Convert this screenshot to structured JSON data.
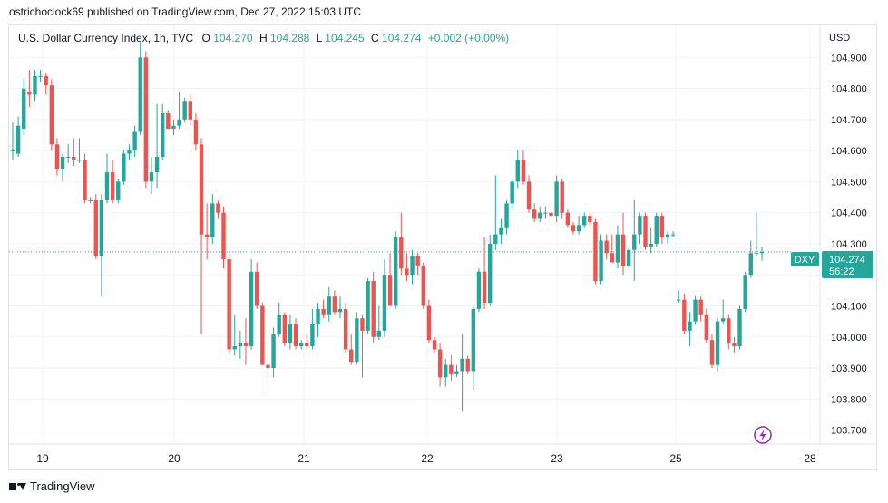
{
  "header": {
    "caption": "ostrichoclock69 published on TradingView.com, Dec 27, 2022 15:03 UTC"
  },
  "legend": {
    "symbol": "U.S. Dollar Currency Index, 1h, TVC",
    "o_label": "O",
    "o_value": "104.270",
    "h_label": "H",
    "h_value": "104.288",
    "l_label": "L",
    "l_value": "104.245",
    "c_label": "C",
    "c_value": "104.274",
    "change": "+0.002 (+0.00%)"
  },
  "price_axis": {
    "currency": "USD",
    "ticks": [
      "104.900",
      "104.800",
      "104.700",
      "104.600",
      "104.500",
      "104.400",
      "104.300",
      "104.200",
      "104.100",
      "104.000",
      "103.900",
      "103.800",
      "103.700"
    ]
  },
  "time_axis": {
    "labels": [
      "19",
      "20",
      "21",
      "22",
      "23",
      "25",
      "28"
    ]
  },
  "price_marker": {
    "ticker": "DXY",
    "price": "104.274",
    "countdown": "56:22"
  },
  "footer": {
    "brand": "TradingView"
  },
  "colors": {
    "up": "#26a69a",
    "down": "#ef5350",
    "grid": "#f0f3fa",
    "axis_text": "#131722",
    "marker_bg": "#26a69a",
    "lightning": "#9c27b0"
  },
  "icons": [
    "lightning-icon",
    "tradingview-logo-icon"
  ],
  "chart_data": {
    "type": "candlestick",
    "title": "U.S. Dollar Currency Index, 1h, TVC",
    "ylabel": "USD",
    "ylim": [
      103.655,
      105.003
    ],
    "x_labels": [
      "19",
      "20",
      "21",
      "22",
      "23",
      "25",
      "28"
    ],
    "last_price": 104.274,
    "grid": true,
    "candles": [
      {
        "o": 104.6,
        "h": 104.69,
        "l": 104.57,
        "c": 104.6
      },
      {
        "o": 104.59,
        "h": 104.71,
        "l": 104.58,
        "c": 104.68
      },
      {
        "o": 104.67,
        "h": 104.83,
        "l": 104.65,
        "c": 104.8
      },
      {
        "o": 104.79,
        "h": 104.86,
        "l": 104.74,
        "c": 104.78
      },
      {
        "o": 104.78,
        "h": 104.86,
        "l": 104.76,
        "c": 104.84
      },
      {
        "o": 104.84,
        "h": 104.86,
        "l": 104.82,
        "c": 104.84
      },
      {
        "o": 104.84,
        "h": 104.85,
        "l": 104.78,
        "c": 104.81
      },
      {
        "o": 104.81,
        "h": 104.83,
        "l": 104.6,
        "c": 104.62
      },
      {
        "o": 104.62,
        "h": 104.64,
        "l": 104.52,
        "c": 104.54
      },
      {
        "o": 104.54,
        "h": 104.59,
        "l": 104.5,
        "c": 104.58
      },
      {
        "o": 104.58,
        "h": 104.62,
        "l": 104.56,
        "c": 104.58
      },
      {
        "o": 104.58,
        "h": 104.64,
        "l": 104.55,
        "c": 104.57
      },
      {
        "o": 104.57,
        "h": 104.64,
        "l": 104.56,
        "c": 104.57
      },
      {
        "o": 104.57,
        "h": 104.59,
        "l": 104.43,
        "c": 104.44
      },
      {
        "o": 104.44,
        "h": 104.45,
        "l": 104.43,
        "c": 104.44
      },
      {
        "o": 104.44,
        "h": 104.46,
        "l": 104.25,
        "c": 104.26
      },
      {
        "o": 104.26,
        "h": 104.46,
        "l": 104.13,
        "c": 104.44
      },
      {
        "o": 104.44,
        "h": 104.59,
        "l": 104.43,
        "c": 104.53
      },
      {
        "o": 104.53,
        "h": 104.57,
        "l": 104.43,
        "c": 104.44
      },
      {
        "o": 104.44,
        "h": 104.51,
        "l": 104.43,
        "c": 104.5
      },
      {
        "o": 104.5,
        "h": 104.6,
        "l": 104.49,
        "c": 104.59
      },
      {
        "o": 104.59,
        "h": 104.62,
        "l": 104.57,
        "c": 104.6
      },
      {
        "o": 104.6,
        "h": 104.68,
        "l": 104.58,
        "c": 104.66
      },
      {
        "o": 104.66,
        "h": 104.95,
        "l": 104.65,
        "c": 104.9
      },
      {
        "o": 104.9,
        "h": 104.92,
        "l": 104.48,
        "c": 104.5
      },
      {
        "o": 104.5,
        "h": 104.58,
        "l": 104.46,
        "c": 104.53
      },
      {
        "o": 104.53,
        "h": 104.75,
        "l": 104.48,
        "c": 104.58
      },
      {
        "o": 104.58,
        "h": 104.75,
        "l": 104.57,
        "c": 104.72
      },
      {
        "o": 104.72,
        "h": 104.73,
        "l": 104.67,
        "c": 104.67
      },
      {
        "o": 104.67,
        "h": 104.7,
        "l": 104.65,
        "c": 104.68
      },
      {
        "o": 104.68,
        "h": 104.79,
        "l": 104.67,
        "c": 104.7
      },
      {
        "o": 104.7,
        "h": 104.77,
        "l": 104.69,
        "c": 104.76
      },
      {
        "o": 104.76,
        "h": 104.78,
        "l": 104.68,
        "c": 104.7
      },
      {
        "o": 104.7,
        "h": 104.72,
        "l": 104.6,
        "c": 104.62
      },
      {
        "o": 104.62,
        "h": 104.64,
        "l": 104.01,
        "c": 104.33
      },
      {
        "o": 104.33,
        "h": 104.43,
        "l": 104.25,
        "c": 104.32
      },
      {
        "o": 104.32,
        "h": 104.46,
        "l": 104.3,
        "c": 104.43
      },
      {
        "o": 104.43,
        "h": 104.44,
        "l": 104.38,
        "c": 104.4
      },
      {
        "o": 104.4,
        "h": 104.42,
        "l": 104.22,
        "c": 104.25
      },
      {
        "o": 104.25,
        "h": 104.27,
        "l": 103.95,
        "c": 103.96
      },
      {
        "o": 103.96,
        "h": 104.07,
        "l": 103.94,
        "c": 103.97
      },
      {
        "o": 103.97,
        "h": 104.02,
        "l": 103.93,
        "c": 103.98
      },
      {
        "o": 103.98,
        "h": 104.06,
        "l": 103.91,
        "c": 103.97
      },
      {
        "o": 103.97,
        "h": 104.25,
        "l": 103.96,
        "c": 104.21
      },
      {
        "o": 104.21,
        "h": 104.24,
        "l": 104.09,
        "c": 104.1
      },
      {
        "o": 104.1,
        "h": 104.11,
        "l": 103.91,
        "c": 103.91
      },
      {
        "o": 103.91,
        "h": 103.94,
        "l": 103.82,
        "c": 103.9
      },
      {
        "o": 103.9,
        "h": 104.03,
        "l": 103.87,
        "c": 104.01
      },
      {
        "o": 104.01,
        "h": 104.11,
        "l": 104.0,
        "c": 104.07
      },
      {
        "o": 104.07,
        "h": 104.08,
        "l": 103.97,
        "c": 103.98
      },
      {
        "o": 103.98,
        "h": 104.07,
        "l": 103.96,
        "c": 104.04
      },
      {
        "o": 104.04,
        "h": 104.06,
        "l": 103.96,
        "c": 103.97
      },
      {
        "o": 103.97,
        "h": 103.99,
        "l": 103.96,
        "c": 103.98
      },
      {
        "o": 103.98,
        "h": 104.01,
        "l": 103.96,
        "c": 103.97
      },
      {
        "o": 103.97,
        "h": 104.09,
        "l": 103.96,
        "c": 104.04
      },
      {
        "o": 104.04,
        "h": 104.11,
        "l": 104.0,
        "c": 104.09
      },
      {
        "o": 104.09,
        "h": 104.12,
        "l": 104.06,
        "c": 104.07
      },
      {
        "o": 104.07,
        "h": 104.16,
        "l": 104.05,
        "c": 104.13
      },
      {
        "o": 104.13,
        "h": 104.15,
        "l": 104.07,
        "c": 104.08
      },
      {
        "o": 104.08,
        "h": 104.13,
        "l": 104.06,
        "c": 104.09
      },
      {
        "o": 104.09,
        "h": 104.11,
        "l": 103.95,
        "c": 103.96
      },
      {
        "o": 103.96,
        "h": 104.01,
        "l": 103.91,
        "c": 103.92
      },
      {
        "o": 103.92,
        "h": 104.08,
        "l": 103.91,
        "c": 104.06
      },
      {
        "o": 104.06,
        "h": 104.07,
        "l": 103.87,
        "c": 104.02
      },
      {
        "o": 104.02,
        "h": 104.19,
        "l": 104.01,
        "c": 104.18
      },
      {
        "o": 104.18,
        "h": 104.21,
        "l": 103.98,
        "c": 104.0
      },
      {
        "o": 104.0,
        "h": 104.1,
        "l": 103.99,
        "c": 104.02
      },
      {
        "o": 104.02,
        "h": 104.25,
        "l": 104.0,
        "c": 104.2
      },
      {
        "o": 104.2,
        "h": 104.27,
        "l": 104.1,
        "c": 104.1
      },
      {
        "o": 104.1,
        "h": 104.34,
        "l": 104.09,
        "c": 104.32
      },
      {
        "o": 104.32,
        "h": 104.4,
        "l": 104.2,
        "c": 104.22
      },
      {
        "o": 104.22,
        "h": 104.27,
        "l": 104.18,
        "c": 104.2
      },
      {
        "o": 104.2,
        "h": 104.28,
        "l": 104.17,
        "c": 104.26
      },
      {
        "o": 104.26,
        "h": 104.27,
        "l": 104.2,
        "c": 104.23
      },
      {
        "o": 104.23,
        "h": 104.24,
        "l": 104.09,
        "c": 104.1
      },
      {
        "o": 104.1,
        "h": 104.12,
        "l": 103.98,
        "c": 103.99
      },
      {
        "o": 103.99,
        "h": 104.0,
        "l": 103.95,
        "c": 103.96
      },
      {
        "o": 103.96,
        "h": 103.98,
        "l": 103.84,
        "c": 103.87
      },
      {
        "o": 103.87,
        "h": 103.93,
        "l": 103.84,
        "c": 103.91
      },
      {
        "o": 103.91,
        "h": 103.94,
        "l": 103.86,
        "c": 103.88
      },
      {
        "o": 103.88,
        "h": 103.91,
        "l": 103.87,
        "c": 103.89
      },
      {
        "o": 103.89,
        "h": 104.01,
        "l": 103.76,
        "c": 103.93
      },
      {
        "o": 103.93,
        "h": 103.94,
        "l": 103.88,
        "c": 103.89
      },
      {
        "o": 103.89,
        "h": 104.1,
        "l": 103.83,
        "c": 104.09
      },
      {
        "o": 104.09,
        "h": 104.22,
        "l": 104.08,
        "c": 104.21
      },
      {
        "o": 104.21,
        "h": 104.32,
        "l": 104.09,
        "c": 104.11
      },
      {
        "o": 104.11,
        "h": 104.33,
        "l": 104.1,
        "c": 104.3
      },
      {
        "o": 104.3,
        "h": 104.52,
        "l": 104.28,
        "c": 104.33
      },
      {
        "o": 104.33,
        "h": 104.38,
        "l": 104.3,
        "c": 104.35
      },
      {
        "o": 104.35,
        "h": 104.44,
        "l": 104.33,
        "c": 104.43
      },
      {
        "o": 104.43,
        "h": 104.51,
        "l": 104.41,
        "c": 104.5
      },
      {
        "o": 104.5,
        "h": 104.6,
        "l": 104.48,
        "c": 104.57
      },
      {
        "o": 104.57,
        "h": 104.6,
        "l": 104.49,
        "c": 104.5
      },
      {
        "o": 104.5,
        "h": 104.52,
        "l": 104.4,
        "c": 104.41
      },
      {
        "o": 104.41,
        "h": 104.43,
        "l": 104.37,
        "c": 104.38
      },
      {
        "o": 104.38,
        "h": 104.42,
        "l": 104.37,
        "c": 104.4
      },
      {
        "o": 104.4,
        "h": 104.42,
        "l": 104.38,
        "c": 104.4
      },
      {
        "o": 104.4,
        "h": 104.42,
        "l": 104.38,
        "c": 104.39
      },
      {
        "o": 104.39,
        "h": 104.52,
        "l": 104.37,
        "c": 104.5
      },
      {
        "o": 104.5,
        "h": 104.51,
        "l": 104.38,
        "c": 104.4
      },
      {
        "o": 104.4,
        "h": 104.41,
        "l": 104.35,
        "c": 104.36
      },
      {
        "o": 104.36,
        "h": 104.37,
        "l": 104.33,
        "c": 104.34
      },
      {
        "o": 104.34,
        "h": 104.39,
        "l": 104.33,
        "c": 104.36
      },
      {
        "o": 104.36,
        "h": 104.4,
        "l": 104.35,
        "c": 104.39
      },
      {
        "o": 104.39,
        "h": 104.4,
        "l": 104.36,
        "c": 104.37
      },
      {
        "o": 104.37,
        "h": 104.38,
        "l": 104.17,
        "c": 104.18
      },
      {
        "o": 104.18,
        "h": 104.33,
        "l": 104.17,
        "c": 104.31
      },
      {
        "o": 104.31,
        "h": 104.33,
        "l": 104.25,
        "c": 104.27
      },
      {
        "o": 104.27,
        "h": 104.33,
        "l": 104.24,
        "c": 104.24
      },
      {
        "o": 104.24,
        "h": 104.36,
        "l": 104.22,
        "c": 104.33
      },
      {
        "o": 104.33,
        "h": 104.4,
        "l": 104.2,
        "c": 104.23
      },
      {
        "o": 104.23,
        "h": 104.29,
        "l": 104.22,
        "c": 104.28
      },
      {
        "o": 104.28,
        "h": 104.44,
        "l": 104.18,
        "c": 104.33
      },
      {
        "o": 104.33,
        "h": 104.4,
        "l": 104.3,
        "c": 104.39
      },
      {
        "o": 104.39,
        "h": 104.4,
        "l": 104.28,
        "c": 104.29
      },
      {
        "o": 104.29,
        "h": 104.35,
        "l": 104.27,
        "c": 104.3
      },
      {
        "o": 104.3,
        "h": 104.4,
        "l": 104.29,
        "c": 104.39
      },
      {
        "o": 104.39,
        "h": 104.4,
        "l": 104.3,
        "c": 104.32
      },
      {
        "o": 104.32,
        "h": 104.34,
        "l": 104.3,
        "c": 104.33
      },
      {
        "o": 104.33,
        "h": 104.34,
        "l": 104.32,
        "c": 104.33
      },
      {
        "o": 104.12,
        "h": 104.15,
        "l": 104.11,
        "c": 104.12
      },
      {
        "o": 104.12,
        "h": 104.14,
        "l": 104.01,
        "c": 104.02
      },
      {
        "o": 104.02,
        "h": 104.08,
        "l": 103.97,
        "c": 104.05
      },
      {
        "o": 104.05,
        "h": 104.13,
        "l": 104.04,
        "c": 104.12
      },
      {
        "o": 104.12,
        "h": 104.13,
        "l": 104.05,
        "c": 104.07
      },
      {
        "o": 104.07,
        "h": 104.09,
        "l": 103.98,
        "c": 103.99
      },
      {
        "o": 103.99,
        "h": 104.01,
        "l": 103.9,
        "c": 103.91
      },
      {
        "o": 103.91,
        "h": 104.06,
        "l": 103.89,
        "c": 104.05
      },
      {
        "o": 104.05,
        "h": 104.12,
        "l": 104.04,
        "c": 104.06
      },
      {
        "o": 104.06,
        "h": 104.07,
        "l": 103.96,
        "c": 103.98
      },
      {
        "o": 103.98,
        "h": 104.0,
        "l": 103.95,
        "c": 103.97
      },
      {
        "o": 103.97,
        "h": 104.1,
        "l": 103.96,
        "c": 104.09
      },
      {
        "o": 104.09,
        "h": 104.21,
        "l": 104.08,
        "c": 104.2
      },
      {
        "o": 104.2,
        "h": 104.31,
        "l": 104.19,
        "c": 104.27
      },
      {
        "o": 104.27,
        "h": 104.4,
        "l": 104.26,
        "c": 104.27
      },
      {
        "o": 104.27,
        "h": 104.288,
        "l": 104.245,
        "c": 104.274
      }
    ]
  }
}
